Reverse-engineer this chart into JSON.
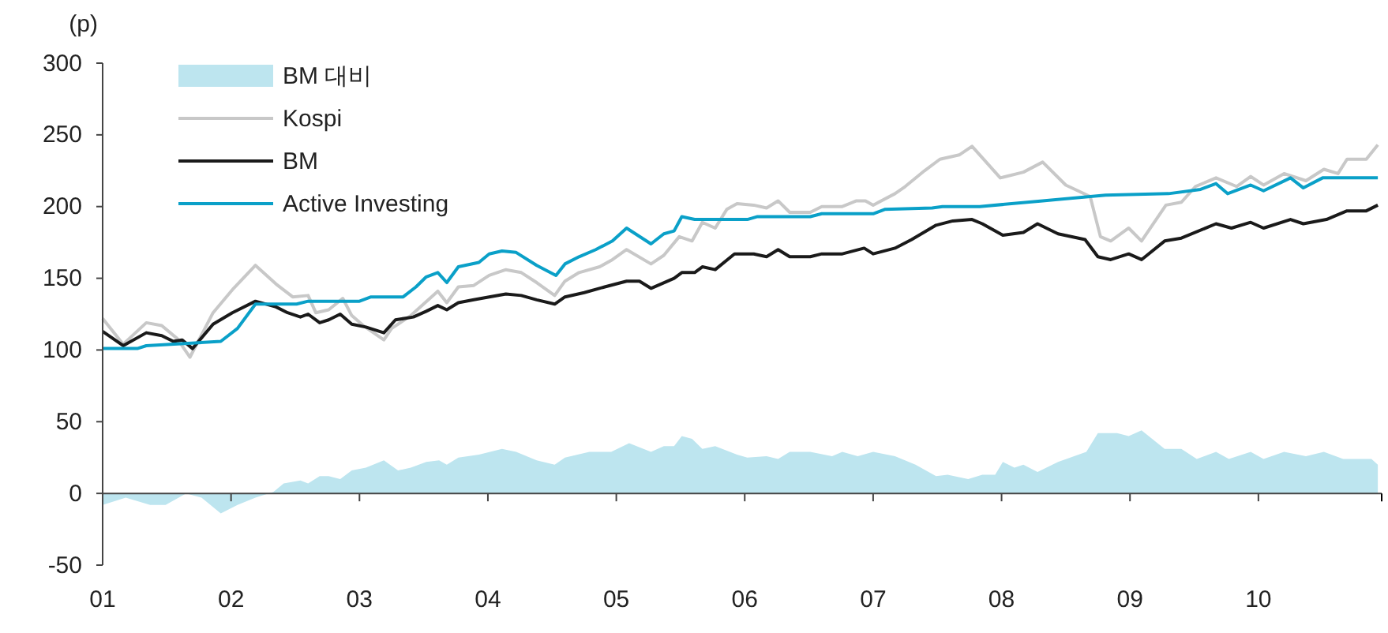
{
  "chart_data": {
    "type": "line",
    "ylabel": "(p)",
    "xlim": [
      2001,
      2010.96
    ],
    "xticks": [
      {
        "value": 2001,
        "label": "01"
      },
      {
        "value": 2002,
        "label": "02"
      },
      {
        "value": 2003,
        "label": "03"
      },
      {
        "value": 2004,
        "label": "04"
      },
      {
        "value": 2005,
        "label": "05"
      },
      {
        "value": 2006,
        "label": "06"
      },
      {
        "value": 2007,
        "label": "07"
      },
      {
        "value": 2008,
        "label": "08"
      },
      {
        "value": 2009,
        "label": "09"
      },
      {
        "value": 2010,
        "label": "10"
      }
    ],
    "ylim": [
      -50,
      300
    ],
    "yticks": [
      -50,
      0,
      50,
      100,
      150,
      200,
      250,
      300
    ],
    "legend": "top left",
    "series": [
      {
        "name": "BM 대비",
        "type": "area",
        "color": "#bde5ef",
        "x": [
          2001.0,
          2001.18,
          2001.37,
          2001.49,
          2001.65,
          2001.77,
          2001.92,
          2002.05,
          2002.19,
          2002.33,
          2002.41,
          2002.54,
          2002.6,
          2002.69,
          2002.76,
          2002.85,
          2002.94,
          2003.05,
          2003.19,
          2003.3,
          2003.4,
          2003.52,
          2003.62,
          2003.68,
          2003.77,
          2003.93,
          2004.11,
          2004.22,
          2004.38,
          2004.52,
          2004.6,
          2004.79,
          2004.96,
          2005.1,
          2005.27,
          2005.37,
          2005.45,
          2005.51,
          2005.59,
          2005.67,
          2005.77,
          2005.94,
          2006.02,
          2006.17,
          2006.26,
          2006.35,
          2006.51,
          2006.68,
          2006.76,
          2006.88,
          2007.0,
          2007.17,
          2007.33,
          2007.49,
          2007.58,
          2007.74,
          2007.85,
          2007.95,
          2008.01,
          2008.1,
          2008.17,
          2008.28,
          2008.44,
          2008.66,
          2008.75,
          2008.9,
          2008.99,
          2009.09,
          2009.27,
          2009.4,
          2009.52,
          2009.67,
          2009.77,
          2009.94,
          2010.04,
          2010.2,
          2010.37,
          2010.51,
          2010.66,
          2010.88,
          2010.93
        ],
        "values": [
          -8,
          -3,
          -8,
          -8,
          0,
          -3,
          -14,
          -8,
          -3,
          1,
          7,
          9,
          7,
          12,
          12,
          10,
          16,
          18,
          23,
          16,
          18,
          22,
          23,
          20,
          25,
          27,
          31,
          29,
          23,
          20,
          25,
          29,
          29,
          35,
          29,
          33,
          33,
          40,
          38,
          31,
          33,
          27,
          25,
          26,
          24,
          29,
          29,
          26,
          29,
          26,
          29,
          26,
          20,
          12,
          13,
          10,
          13,
          13,
          22,
          18,
          20,
          15,
          22,
          29,
          42,
          42,
          40,
          44,
          31,
          31,
          24,
          29,
          24,
          29,
          24,
          29,
          26,
          29,
          24,
          24,
          20
        ]
      },
      {
        "name": "Kospi",
        "color": "#c8c8c8",
        "x": [
          2001.0,
          2001.16,
          2001.34,
          2001.46,
          2001.58,
          2001.68,
          2001.86,
          2002.02,
          2002.19,
          2002.35,
          2002.48,
          2002.6,
          2002.66,
          2002.76,
          2002.87,
          2002.94,
          2003.03,
          2003.19,
          2003.25,
          2003.4,
          2003.61,
          2003.68,
          2003.77,
          2003.89,
          2004.01,
          2004.14,
          2004.26,
          2004.38,
          2004.52,
          2004.6,
          2004.71,
          2004.87,
          2004.97,
          2005.08,
          2005.27,
          2005.37,
          2005.49,
          2005.59,
          2005.67,
          2005.77,
          2005.86,
          2005.94,
          2006.07,
          2006.17,
          2006.26,
          2006.35,
          2006.51,
          2006.6,
          2006.76,
          2006.87,
          2006.94,
          2007.0,
          2007.17,
          2007.25,
          2007.4,
          2007.52,
          2007.67,
          2007.77,
          2007.85,
          2007.99,
          2008.17,
          2008.32,
          2008.5,
          2008.69,
          2008.77,
          2008.85,
          2008.99,
          2009.09,
          2009.28,
          2009.4,
          2009.51,
          2009.67,
          2009.83,
          2009.94,
          2010.04,
          2010.2,
          2010.37,
          2010.51,
          2010.62,
          2010.69,
          2010.84,
          2010.93
        ],
        "values": [
          122,
          104,
          119,
          117,
          108,
          95,
          126,
          143,
          159,
          146,
          137,
          138,
          126,
          128,
          136,
          124,
          117,
          107,
          115,
          124,
          141,
          133,
          144,
          145,
          152,
          156,
          154,
          147,
          138,
          148,
          154,
          158,
          163,
          170,
          160,
          166,
          179,
          176,
          189,
          185,
          198,
          202,
          201,
          199,
          204,
          196,
          196,
          200,
          200,
          204,
          204,
          201,
          209,
          214,
          225,
          233,
          236,
          242,
          234,
          220,
          224,
          231,
          215,
          207,
          179,
          176,
          185,
          176,
          201,
          203,
          214,
          220,
          214,
          221,
          215,
          223,
          218,
          226,
          223,
          233,
          233,
          243
        ]
      },
      {
        "name": "BM",
        "color": "#1a1a1a",
        "x": [
          2001.0,
          2001.16,
          2001.34,
          2001.46,
          2001.55,
          2001.62,
          2001.7,
          2001.86,
          2002.01,
          2002.19,
          2002.35,
          2002.44,
          2002.54,
          2002.6,
          2002.69,
          2002.76,
          2002.85,
          2002.94,
          2003.05,
          2003.19,
          2003.28,
          2003.42,
          2003.52,
          2003.61,
          2003.68,
          2003.77,
          2003.89,
          2004.01,
          2004.14,
          2004.26,
          2004.38,
          2004.52,
          2004.6,
          2004.75,
          2004.91,
          2005.08,
          2005.18,
          2005.27,
          2005.45,
          2005.51,
          2005.61,
          2005.67,
          2005.77,
          2005.92,
          2006.07,
          2006.17,
          2006.26,
          2006.35,
          2006.51,
          2006.6,
          2006.76,
          2006.93,
          2007.0,
          2007.17,
          2007.3,
          2007.49,
          2007.62,
          2007.77,
          2007.85,
          2008.01,
          2008.17,
          2008.28,
          2008.44,
          2008.65,
          2008.75,
          2008.85,
          2008.99,
          2009.09,
          2009.27,
          2009.4,
          2009.67,
          2009.79,
          2009.94,
          2010.04,
          2010.25,
          2010.35,
          2010.53,
          2010.69,
          2010.84,
          2010.93
        ],
        "values": [
          113,
          103,
          112,
          110,
          106,
          107,
          101,
          118,
          126,
          134,
          130,
          126,
          123,
          125,
          119,
          121,
          125,
          118,
          116,
          112,
          121,
          123,
          127,
          131,
          128,
          133,
          135,
          137,
          139,
          138,
          135,
          132,
          137,
          140,
          144,
          148,
          148,
          143,
          150,
          154,
          154,
          158,
          156,
          167,
          167,
          165,
          170,
          165,
          165,
          167,
          167,
          171,
          167,
          171,
          177,
          187,
          190,
          191,
          188,
          180,
          182,
          188,
          181,
          177,
          165,
          163,
          167,
          163,
          176,
          178,
          188,
          185,
          189,
          185,
          191,
          188,
          191,
          197,
          197,
          201
        ]
      },
      {
        "name": "Active Investing",
        "color": "#0aa0c8",
        "x": [
          2001.0,
          2001.27,
          2001.34,
          2001.92,
          2002.05,
          2002.19,
          2002.51,
          2002.6,
          2003.0,
          2003.09,
          2003.34,
          2003.44,
          2003.52,
          2003.61,
          2003.68,
          2003.77,
          2003.93,
          2004.01,
          2004.11,
          2004.22,
          2004.38,
          2004.53,
          2004.6,
          2004.71,
          2004.84,
          2004.97,
          2005.08,
          2005.27,
          2005.37,
          2005.45,
          2005.51,
          2005.61,
          2006.02,
          2006.1,
          2006.51,
          2006.6,
          2007.0,
          2007.09,
          2007.46,
          2007.54,
          2007.83,
          2008.32,
          2008.81,
          2009.3,
          2009.55,
          2009.67,
          2009.76,
          2009.94,
          2010.04,
          2010.25,
          2010.35,
          2010.5,
          2010.93
        ],
        "values": [
          101,
          101,
          103,
          106,
          115,
          132,
          132,
          134,
          134,
          137,
          137,
          144,
          151,
          154,
          147,
          158,
          161,
          167,
          169,
          168,
          159,
          152,
          160,
          165,
          170,
          176,
          185,
          174,
          181,
          183,
          193,
          191,
          191,
          193,
          193,
          195,
          195,
          198,
          199,
          200,
          200,
          204,
          208,
          209,
          212,
          216,
          209,
          215,
          211,
          220,
          213,
          220,
          220
        ]
      }
    ]
  }
}
